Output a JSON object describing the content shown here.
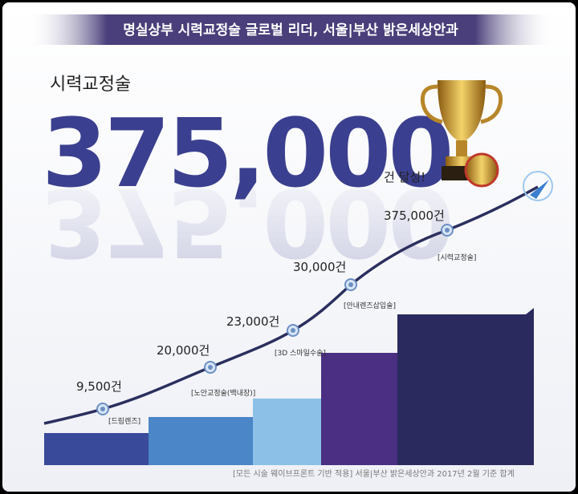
{
  "header": {
    "title": "명실상부 시력교정술 글로벌 리더, 서울|부산 밝은세상안과"
  },
  "headline": {
    "label": "시력교정술",
    "number": "375,000",
    "suffix": "건 달성!"
  },
  "milestones": [
    {
      "count": "9,500건",
      "name": "[드림렌즈]"
    },
    {
      "count": "20,000건",
      "name": "[노안교정술(백내장)]"
    },
    {
      "count": "23,000건",
      "name": "[3D 스마일수술]"
    },
    {
      "count": "30,000건",
      "name": "[안내렌즈삽입술]"
    },
    {
      "count": "375,000건",
      "name": "[시력교정술]"
    }
  ],
  "footnote": "[모든 시술 웨이브프론트 기반 적용] 서울|부산 밝은세상안과 2017년 2월 기준 합계"
}
